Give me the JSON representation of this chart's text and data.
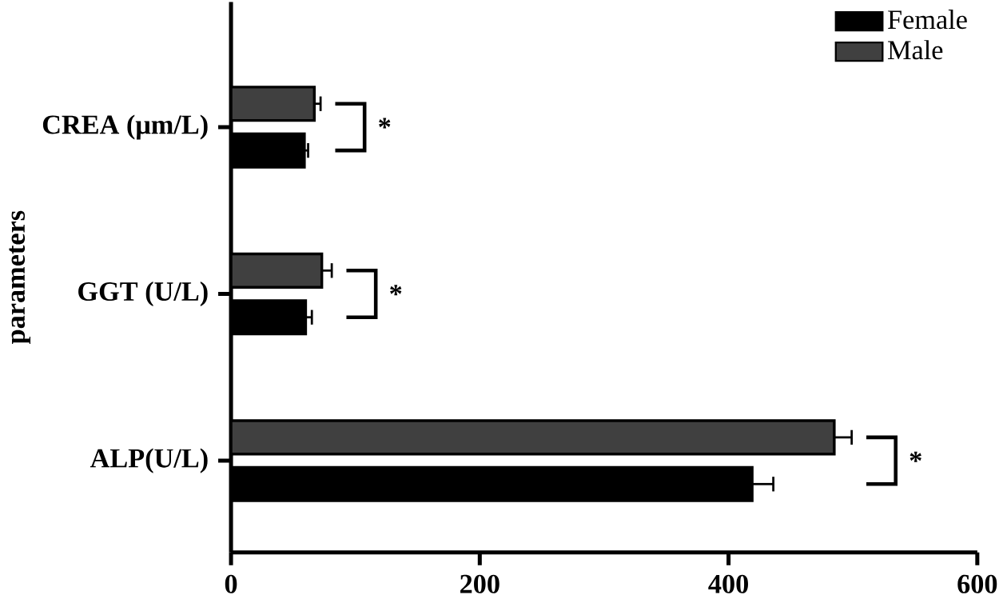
{
  "chart_data": {
    "type": "bar",
    "orientation": "horizontal",
    "ylabel": "parameters",
    "categories": [
      "CREA (μm/L)",
      "GGT (U/L)",
      "ALP(U/L)"
    ],
    "series": [
      {
        "name": "Female",
        "color": "#000000",
        "values": [
          59,
          60,
          419
        ],
        "errors": [
          3,
          5,
          17
        ]
      },
      {
        "name": "Male",
        "color": "#404040",
        "values": [
          67,
          73,
          485
        ],
        "errors": [
          5,
          8,
          14
        ]
      }
    ],
    "xlim": [
      0,
      600
    ],
    "xticks": [
      0,
      200,
      400,
      600
    ],
    "legend": "top right",
    "grid": false,
    "annotations": [
      "*",
      "*",
      "*"
    ]
  }
}
